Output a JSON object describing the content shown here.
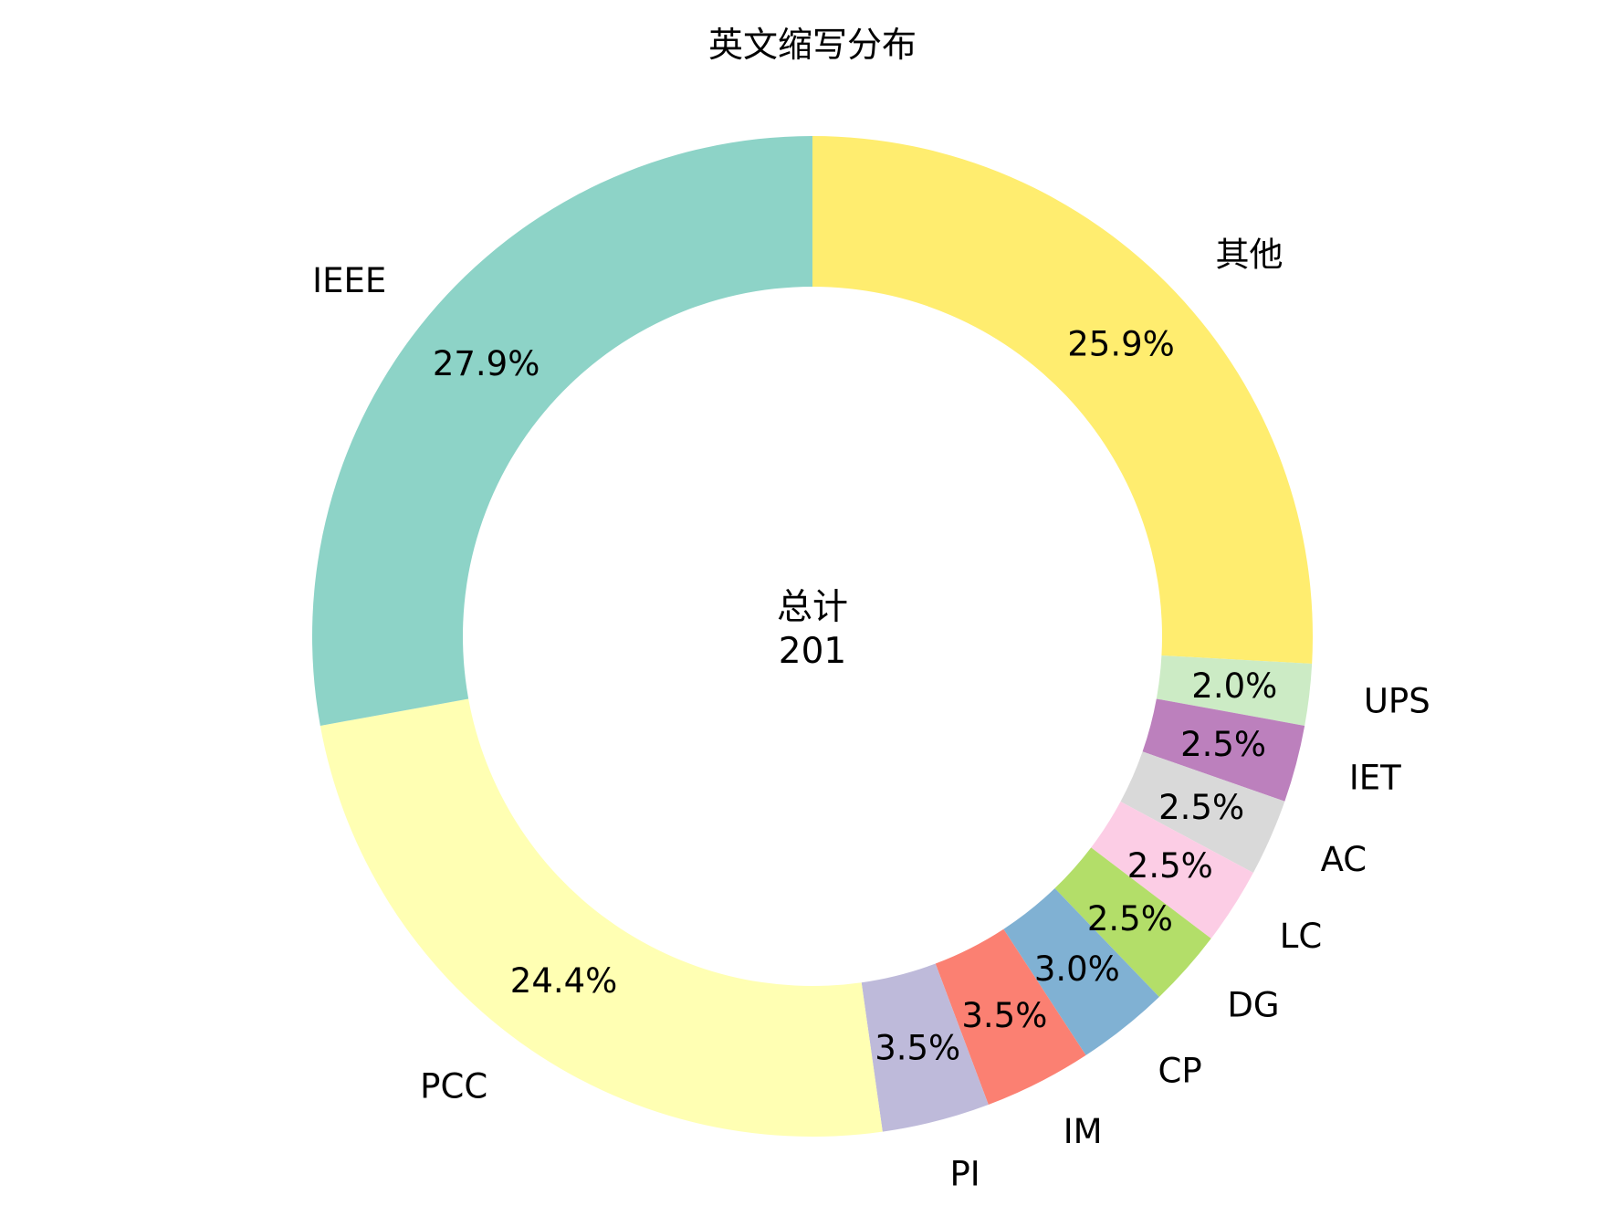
{
  "chart_data": {
    "type": "pie",
    "variant": "donut",
    "title": "英文缩写分布",
    "center_label": "总计",
    "center_value": "201",
    "start_angle_deg": 90,
    "direction": "clockwise",
    "legend": "none",
    "slices": [
      {
        "label": "其他",
        "value": 52,
        "percent_label": "25.9%",
        "color": "#FFED6F"
      },
      {
        "label": "UPS",
        "value": 4,
        "percent_label": "2.0%",
        "color": "#CCEBC5"
      },
      {
        "label": "IET",
        "value": 5,
        "percent_label": "2.5%",
        "color": "#BC80BD"
      },
      {
        "label": "AC",
        "value": 5,
        "percent_label": "2.5%",
        "color": "#D9D9D9"
      },
      {
        "label": "LC",
        "value": 5,
        "percent_label": "2.5%",
        "color": "#FCCDE5"
      },
      {
        "label": "DG",
        "value": 5,
        "percent_label": "2.5%",
        "color": "#B3DE69"
      },
      {
        "label": "CP",
        "value": 6,
        "percent_label": "3.0%",
        "color": "#80B1D3"
      },
      {
        "label": "IM",
        "value": 7,
        "percent_label": "3.5%",
        "color": "#FB8072"
      },
      {
        "label": "PI",
        "value": 7,
        "percent_label": "3.5%",
        "color": "#BEBADA"
      },
      {
        "label": "PCC",
        "value": 49,
        "percent_label": "24.4%",
        "color": "#FFFFB3"
      },
      {
        "label": "IEEE",
        "value": 56,
        "percent_label": "27.9%",
        "color": "#8DD3C7"
      }
    ]
  }
}
